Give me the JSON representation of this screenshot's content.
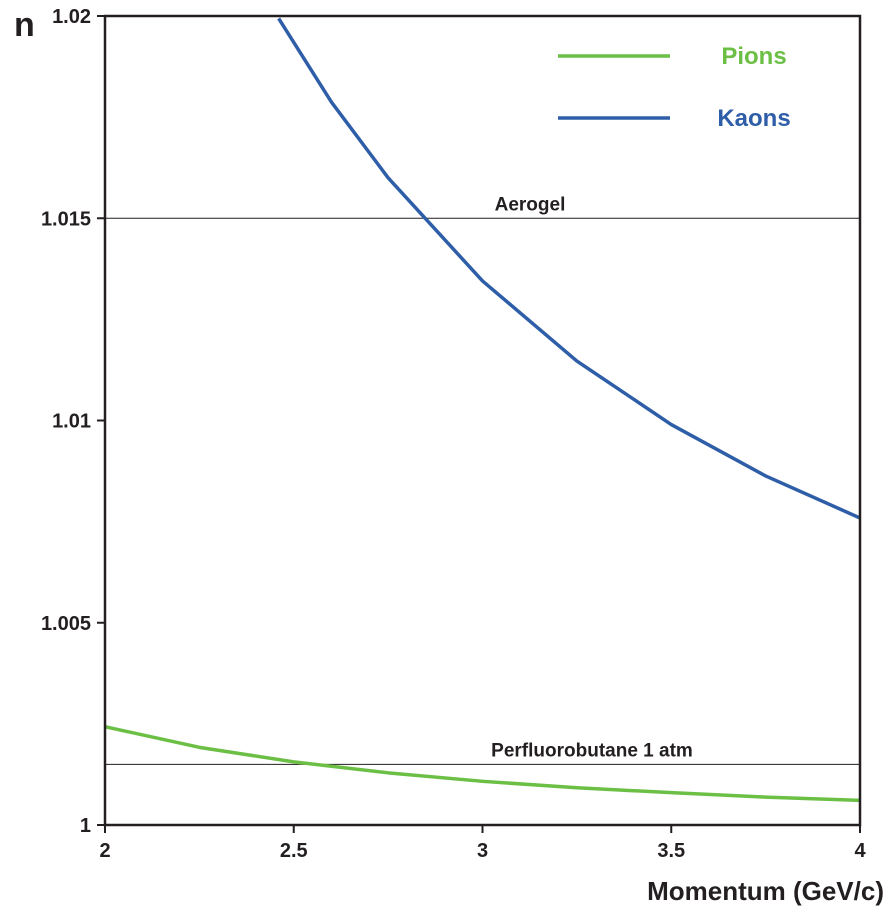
{
  "chart_data": {
    "type": "line",
    "y_label": "n",
    "x_label": "Momentum (GeV/c)",
    "xlim": [
      2,
      4
    ],
    "xticks": [
      2,
      2.5,
      3,
      3.5,
      4
    ],
    "ylim": [
      1,
      1.02
    ],
    "yticks": [
      1,
      1.005,
      1.01,
      1.015,
      1.02
    ],
    "legend": "top-right",
    "series": [
      {
        "name": "Pions",
        "color": "#6cbf45",
        "x": [
          2,
          2.25,
          2.5,
          2.75,
          3,
          3.25,
          3.5,
          3.75,
          4
        ],
        "values": [
          1.00243,
          1.00192,
          1.00156,
          1.00129,
          1.00108,
          1.00092,
          1.0008,
          1.00069,
          1.00061
        ]
      },
      {
        "name": "Kaons",
        "color": "#2f5ea8",
        "x": [
          2.46,
          2.6,
          2.75,
          3,
          3.25,
          3.5,
          3.75,
          4
        ],
        "values": [
          1.01994,
          1.01787,
          1.016,
          1.01345,
          1.01147,
          1.0099,
          1.00863,
          1.00759
        ]
      }
    ],
    "reference_lines": [
      {
        "label": "Aerogel",
        "value": 1.015
      },
      {
        "label": "Perfluorobutane  1 atm",
        "value": 1.0015
      }
    ]
  }
}
